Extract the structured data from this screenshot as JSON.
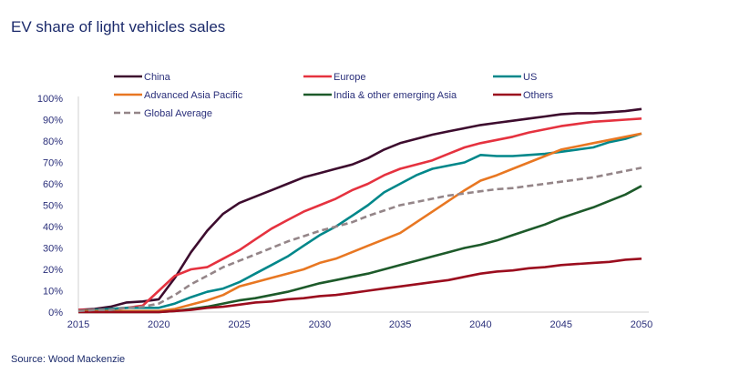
{
  "chart_data": {
    "type": "line",
    "title": "EV share of light vehicles sales",
    "xlabel": "",
    "ylabel": "",
    "xlim": [
      2015,
      2050
    ],
    "ylim": [
      0,
      100
    ],
    "x_ticks": [
      "2015",
      "2020",
      "2025",
      "2030",
      "2035",
      "2040",
      "2045",
      "2050"
    ],
    "y_ticks": [
      "0%",
      "10%",
      "20%",
      "30%",
      "40%",
      "50%",
      "60%",
      "70%",
      "80%",
      "90%",
      "100%"
    ],
    "grid": false,
    "legend_position": "top",
    "x": [
      2015,
      2016,
      2017,
      2018,
      2019,
      2020,
      2021,
      2022,
      2023,
      2024,
      2025,
      2026,
      2027,
      2028,
      2029,
      2030,
      2031,
      2032,
      2033,
      2034,
      2035,
      2036,
      2037,
      2038,
      2039,
      2040,
      2041,
      2042,
      2043,
      2044,
      2045,
      2046,
      2047,
      2048,
      2049,
      2050
    ],
    "series": [
      {
        "name": "China",
        "color": "#3d0c2e",
        "dashed": false,
        "values": [
          1,
          1.5,
          2.5,
          4.5,
          5,
          6,
          16,
          28,
          38,
          46,
          51,
          54,
          57,
          60,
          63,
          65,
          67,
          69,
          72,
          76,
          79,
          81,
          83,
          84.5,
          86,
          87.5,
          88.5,
          89.5,
          90.5,
          91.5,
          92.5,
          93,
          93,
          93.5,
          94,
          95
        ]
      },
      {
        "name": "Europe",
        "color": "#e5323f",
        "dashed": false,
        "values": [
          1,
          1,
          1.5,
          2,
          3,
          10,
          17,
          20,
          21,
          25,
          29,
          34,
          39,
          43,
          47,
          50,
          53,
          57,
          60,
          64,
          67,
          69,
          71,
          74,
          77,
          79,
          80.5,
          82,
          84,
          85.5,
          87,
          88,
          89,
          89.5,
          90,
          90.5
        ]
      },
      {
        "name": "US",
        "color": "#00878a",
        "dashed": false,
        "values": [
          0.5,
          1,
          1.5,
          2,
          2,
          2,
          4,
          7,
          9.5,
          11,
          14,
          18,
          22,
          26,
          31,
          36,
          40,
          45,
          50,
          56,
          60,
          64,
          67,
          68.5,
          70,
          73.5,
          73,
          73,
          73.5,
          74,
          75,
          76,
          77,
          79.5,
          81,
          83.5
        ]
      },
      {
        "name": "Advanced Asia Pacific",
        "color": "#e87722",
        "dashed": false,
        "values": [
          0.5,
          0.5,
          0.5,
          0.5,
          0.5,
          0.5,
          1.5,
          3.5,
          5.5,
          8,
          12,
          14,
          16,
          18,
          20,
          23,
          25,
          28,
          31,
          34,
          37,
          42,
          47,
          52,
          57,
          61.5,
          64,
          67,
          70,
          73,
          76,
          77.5,
          79,
          80.5,
          82,
          83.5
        ]
      },
      {
        "name": "India & other emerging Asia",
        "color": "#1d5a2a",
        "dashed": false,
        "values": [
          0,
          0,
          0,
          0,
          0,
          0,
          0.5,
          1.5,
          2.5,
          4,
          5.5,
          6.5,
          8,
          9.5,
          11.5,
          13.5,
          15,
          16.5,
          18,
          20,
          22,
          24,
          26,
          28,
          30,
          31.5,
          33.5,
          36,
          38.5,
          41,
          44,
          46.5,
          49,
          52,
          55,
          59
        ]
      },
      {
        "name": "Others",
        "color": "#9b0d1e",
        "dashed": false,
        "values": [
          0,
          0,
          0,
          0,
          0,
          0,
          0.5,
          1,
          2,
          2.5,
          3.5,
          4.5,
          5,
          6,
          6.5,
          7.5,
          8,
          9,
          10,
          11,
          12,
          13,
          14,
          15,
          16.5,
          18,
          19,
          19.5,
          20.5,
          21,
          22,
          22.5,
          23,
          23.5,
          24.5,
          25
        ]
      },
      {
        "name": "Global Average",
        "color": "#948588",
        "dashed": true,
        "values": [
          0.5,
          1,
          1,
          2,
          2.5,
          4,
          8,
          13,
          17,
          21,
          24,
          27,
          30,
          33,
          35.5,
          38,
          40,
          42,
          45,
          47.5,
          50,
          51.5,
          53,
          54.5,
          55.5,
          56.5,
          57.5,
          58,
          59,
          60,
          61,
          62,
          63,
          64.5,
          66,
          67.5
        ]
      }
    ]
  },
  "source": "Source: Wood Mackenzie"
}
